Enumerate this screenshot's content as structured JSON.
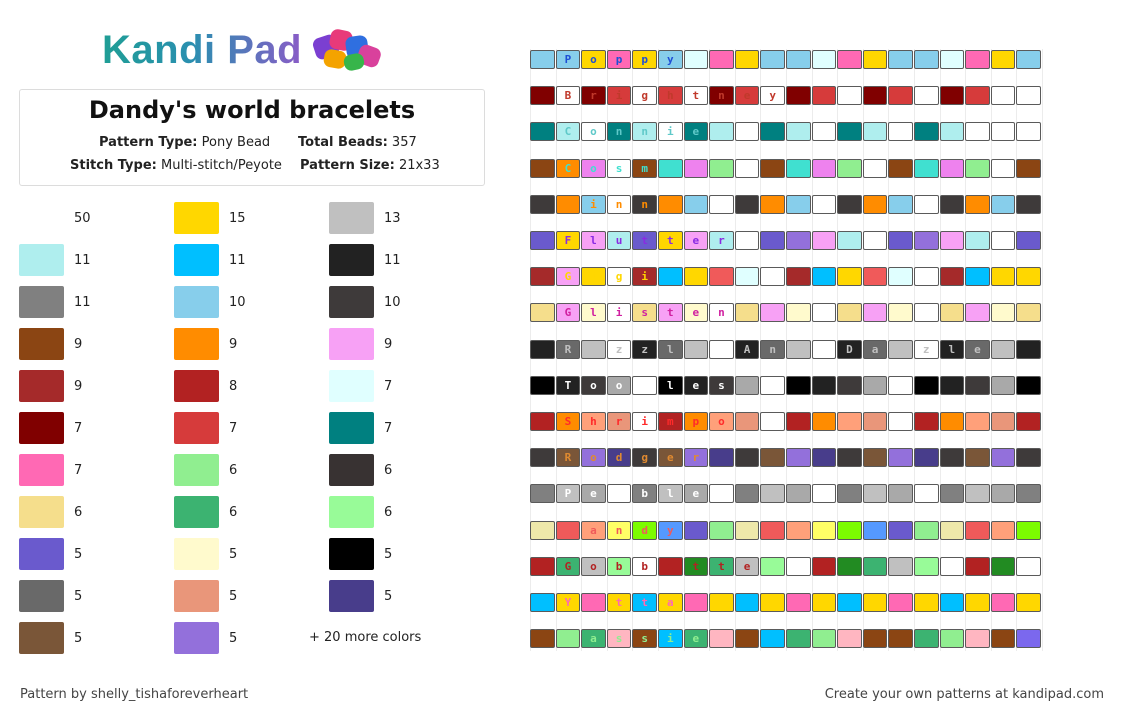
{
  "logo": {
    "text": "Kandi Pad",
    "icon": "beads-logo-icon"
  },
  "info": {
    "title": "Dandy's world bracelets",
    "pattern_type_label": "Pattern Type:",
    "pattern_type": "Pony Bead",
    "total_beads_label": "Total Beads:",
    "total_beads": "357",
    "stitch_type_label": "Stitch Type:",
    "stitch_type": "Multi-stitch/Peyote",
    "pattern_size_label": "Pattern Size:",
    "pattern_size": "21x33"
  },
  "legend": [
    [
      {
        "color": "#ffffff",
        "count": "50"
      },
      {
        "color": "#afeeee",
        "count": "11"
      },
      {
        "color": "#808080",
        "count": "11"
      },
      {
        "color": "#8b4513",
        "count": "9"
      },
      {
        "color": "#a52a2a",
        "count": "9"
      },
      {
        "color": "#800000",
        "count": "7"
      },
      {
        "color": "#ff69b4",
        "count": "7"
      },
      {
        "color": "#f5de8c",
        "count": "6"
      },
      {
        "color": "#6a5acd",
        "count": "5"
      },
      {
        "color": "#696969",
        "count": "5"
      },
      {
        "color": "#7a5638",
        "count": "5"
      }
    ],
    [
      {
        "color": "#ffd700",
        "count": "15"
      },
      {
        "color": "#00bfff",
        "count": "11"
      },
      {
        "color": "#87ceeb",
        "count": "10"
      },
      {
        "color": "#ff8c00",
        "count": "9"
      },
      {
        "color": "#b22222",
        "count": "8"
      },
      {
        "color": "#d63b3b",
        "count": "7"
      },
      {
        "color": "#90ee90",
        "count": "6"
      },
      {
        "color": "#3cb371",
        "count": "6"
      },
      {
        "color": "#fffacd",
        "count": "5"
      },
      {
        "color": "#e9967a",
        "count": "5"
      },
      {
        "color": "#9370db",
        "count": "5"
      }
    ],
    [
      {
        "color": "#c0c0c0",
        "count": "13"
      },
      {
        "color": "#222222",
        "count": "11"
      },
      {
        "color": "#3e3a3a",
        "count": "10"
      },
      {
        "color": "#f7a1f5",
        "count": "9"
      },
      {
        "color": "#e0ffff",
        "count": "7"
      },
      {
        "color": "#008080",
        "count": "7"
      },
      {
        "color": "#383232",
        "count": "6"
      },
      {
        "color": "#98fb98",
        "count": "6"
      },
      {
        "color": "#000000",
        "count": "5"
      },
      {
        "color": "#483d8b",
        "count": "5"
      }
    ]
  ],
  "more_colors": "+ 20 more colors",
  "pattern": [
    {
      "beads": [
        "#87ceeb",
        "#87ceeb",
        "#ffd700",
        "#ff69b4",
        "#ffd700",
        "#87ceeb",
        "#e0ffff",
        "#ff69b4",
        "#ffd700",
        "#87ceeb",
        "#87ceeb",
        "#e0ffff",
        "#ff69b4",
        "#ffd700",
        "#87ceeb",
        "#87ceeb",
        "#e0ffff",
        "#ff69b4",
        "#ffd700",
        "#87ceeb"
      ],
      "letters": [
        "",
        "P",
        "o",
        "p",
        "p",
        "y"
      ],
      "letter_color": "#1e4fd6"
    },
    {
      "beads": [
        "#800000",
        "#ffffff",
        "#800000",
        "#d63b3b",
        "#ffffff",
        "#d63b3b",
        "#ffffff",
        "#800000",
        "#d63b3b",
        "#ffffff",
        "#800000",
        "#d63b3b",
        "#ffffff",
        "#800000",
        "#d63b3b",
        "#ffffff",
        "#800000",
        "#d63b3b",
        "#ffffff",
        "#ffffff"
      ],
      "letters": [
        "",
        "B",
        "r",
        "i",
        "g",
        "h",
        "t",
        "n",
        "e",
        "y"
      ],
      "letter_color": "#c0392b"
    },
    {
      "beads": [
        "#008080",
        "#afeeee",
        "#ffffff",
        "#008080",
        "#afeeee",
        "#ffffff",
        "#008080",
        "#afeeee",
        "#ffffff",
        "#008080",
        "#afeeee",
        "#ffffff",
        "#008080",
        "#afeeee",
        "#ffffff",
        "#008080",
        "#afeeee",
        "#ffffff",
        "#ffffff",
        "#ffffff"
      ],
      "letters": [
        "",
        "C",
        "o",
        "n",
        "n",
        "i",
        "e"
      ],
      "letter_color": "#5fc9c9"
    },
    {
      "beads": [
        "#8b4513",
        "#ff8c00",
        "#ee82ee",
        "#ffffff",
        "#8b4513",
        "#40e0d0",
        "#ee82ee",
        "#90ee90",
        "#ffffff",
        "#8b4513",
        "#40e0d0",
        "#ee82ee",
        "#90ee90",
        "#ffffff",
        "#8b4513",
        "#40e0d0",
        "#ee82ee",
        "#90ee90",
        "#ffffff",
        "#8b4513"
      ],
      "letters": [
        "",
        "C",
        "o",
        "s",
        "m",
        "o"
      ],
      "letter_color": "#40e0d0"
    },
    {
      "beads": [
        "#3e3a3a",
        "#ff8c00",
        "#87ceeb",
        "#ffffff",
        "#3e3a3a",
        "#ff8c00",
        "#87ceeb",
        "#ffffff",
        "#3e3a3a",
        "#ff8c00",
        "#87ceeb",
        "#ffffff",
        "#3e3a3a",
        "#ff8c00",
        "#87ceeb",
        "#ffffff",
        "#3e3a3a",
        "#ff8c00",
        "#87ceeb",
        "#3e3a3a"
      ],
      "letters": [
        "",
        "F",
        "i",
        "n",
        "n"
      ],
      "letter_color": "#ff8c00"
    },
    {
      "beads": [
        "#6a5acd",
        "#ffd700",
        "#f7a1f5",
        "#afeeee",
        "#6a5acd",
        "#ffd700",
        "#f7a1f5",
        "#afeeee",
        "#ffffff",
        "#6a5acd",
        "#9370db",
        "#f7a1f5",
        "#afeeee",
        "#ffffff",
        "#6a5acd",
        "#9370db",
        "#f7a1f5",
        "#afeeee",
        "#ffffff",
        "#6a5acd"
      ],
      "letters": [
        "",
        "F",
        "l",
        "u",
        "t",
        "t",
        "e",
        "r"
      ],
      "letter_color": "#8a2be2"
    },
    {
      "beads": [
        "#a52a2a",
        "#f7a1f5",
        "#ffd700",
        "#ffffff",
        "#a52a2a",
        "#00bfff",
        "#ffd700",
        "#f05a5a",
        "#e0ffff",
        "#ffffff",
        "#a52a2a",
        "#00bfff",
        "#ffd700",
        "#f05a5a",
        "#e0ffff",
        "#ffffff",
        "#a52a2a",
        "#00bfff",
        "#ffd700",
        "#ffd700"
      ],
      "letters": [
        "",
        "G",
        "i",
        "g",
        "i"
      ],
      "letter_color": "#ffd700"
    },
    {
      "beads": [
        "#f5de8c",
        "#f7a1f5",
        "#fffacd",
        "#ffffff",
        "#f5de8c",
        "#f7a1f5",
        "#fffacd",
        "#ffffff",
        "#f5de8c",
        "#f7a1f5",
        "#fffacd",
        "#ffffff",
        "#f5de8c",
        "#f7a1f5",
        "#fffacd",
        "#ffffff",
        "#f5de8c",
        "#f7a1f5",
        "#fffacd",
        "#f5de8c"
      ],
      "letters": [
        "",
        "G",
        "l",
        "i",
        "s",
        "t",
        "e",
        "n"
      ],
      "letter_color": "#d020a0"
    },
    {
      "beads": [
        "#222222",
        "#696969",
        "#c0c0c0",
        "#ffffff",
        "#222222",
        "#696969",
        "#c0c0c0",
        "#ffffff",
        "#222222",
        "#696969",
        "#c0c0c0",
        "#ffffff",
        "#222222",
        "#696969",
        "#c0c0c0",
        "#ffffff",
        "#222222",
        "#696969",
        "#c0c0c0",
        "#222222"
      ],
      "letters": [
        "",
        "R",
        "a",
        "z",
        "z",
        "l",
        "e",
        "",
        "A",
        "n",
        "d",
        "",
        "D",
        "a",
        "z",
        "z",
        "l",
        "e"
      ],
      "letter_color": "#c0c0c0"
    },
    {
      "beads": [
        "#000000",
        "#222222",
        "#3e3a3a",
        "#a9a9a9",
        "#ffffff",
        "#000000",
        "#222222",
        "#3e3a3a",
        "#a9a9a9",
        "#ffffff",
        "#000000",
        "#222222",
        "#3e3a3a",
        "#a9a9a9",
        "#ffffff",
        "#000000",
        "#222222",
        "#3e3a3a",
        "#a9a9a9",
        "#000000"
      ],
      "letters": [
        "",
        "T",
        "o",
        "o",
        "d",
        "l",
        "e",
        "s"
      ],
      "letter_color": "#ffffff"
    },
    {
      "beads": [
        "#b22222",
        "#ff8c00",
        "#ffa07a",
        "#e9967a",
        "#ffffff",
        "#b22222",
        "#ff8c00",
        "#ffa07a",
        "#e9967a",
        "#ffffff",
        "#b22222",
        "#ff8c00",
        "#ffa07a",
        "#e9967a",
        "#ffffff",
        "#b22222",
        "#ff8c00",
        "#ffa07a",
        "#e9967a",
        "#b22222"
      ],
      "letters": [
        "",
        "S",
        "h",
        "r",
        "i",
        "m",
        "p",
        "o"
      ],
      "letter_color": "#ff2a2a"
    },
    {
      "beads": [
        "#3e3a3a",
        "#7a5638",
        "#9370db",
        "#483d8b",
        "#3e3a3a",
        "#7a5638",
        "#9370db",
        "#483d8b",
        "#3e3a3a",
        "#7a5638",
        "#9370db",
        "#483d8b",
        "#3e3a3a",
        "#7a5638",
        "#9370db",
        "#483d8b",
        "#3e3a3a",
        "#7a5638",
        "#9370db",
        "#3e3a3a"
      ],
      "letters": [
        "",
        "R",
        "o",
        "d",
        "g",
        "e",
        "r"
      ],
      "letter_color": "#e08a30"
    },
    {
      "beads": [
        "#808080",
        "#c0c0c0",
        "#a9a9a9",
        "#ffffff",
        "#808080",
        "#c0c0c0",
        "#a9a9a9",
        "#ffffff",
        "#808080",
        "#c0c0c0",
        "#a9a9a9",
        "#ffffff",
        "#808080",
        "#c0c0c0",
        "#a9a9a9",
        "#ffffff",
        "#808080",
        "#c0c0c0",
        "#a9a9a9",
        "#808080"
      ],
      "letters": [
        "",
        "P",
        "e",
        "b",
        "b",
        "l",
        "e"
      ],
      "letter_color": "#ffffff"
    },
    {
      "beads": [
        "#eee8aa",
        "#f05a5a",
        "#ffa07a",
        "#ffff66",
        "#7cfc00",
        "#5599ff",
        "#6a5acd",
        "#90ee90",
        "#eee8aa",
        "#f05a5a",
        "#ffa07a",
        "#ffff66",
        "#7cfc00",
        "#5599ff",
        "#6a5acd",
        "#90ee90",
        "#eee8aa",
        "#f05a5a",
        "#ffa07a",
        "#7cfc00"
      ],
      "letters": [
        "",
        "D",
        "a",
        "n",
        "d",
        "y"
      ],
      "letter_color": "#f05a5a"
    },
    {
      "beads": [
        "#b22222",
        "#3cb371",
        "#c0c0c0",
        "#98fb98",
        "#ffffff",
        "#b22222",
        "#228b22",
        "#3cb371",
        "#c0c0c0",
        "#98fb98",
        "#ffffff",
        "#b22222",
        "#228b22",
        "#3cb371",
        "#c0c0c0",
        "#98fb98",
        "#ffffff",
        "#b22222",
        "#228b22",
        "#ffffff"
      ],
      "letters": [
        "",
        "G",
        "o",
        "b",
        "b",
        "e",
        "t",
        "t",
        "e"
      ],
      "letter_color": "#b22222"
    },
    {
      "beads": [
        "#00bfff",
        "#ffd700",
        "#ff69b4",
        "#ffd700",
        "#00bfff",
        "#ffd700",
        "#ff69b4",
        "#ffd700",
        "#00bfff",
        "#ffd700",
        "#ff69b4",
        "#ffd700",
        "#00bfff",
        "#ffd700",
        "#ff69b4",
        "#ffd700",
        "#00bfff",
        "#ffd700",
        "#ff69b4",
        "#ffd700"
      ],
      "letters": [
        "",
        "Y",
        "a",
        "t",
        "t",
        "a"
      ],
      "letter_color": "#ff69b4"
    },
    {
      "beads": [
        "#8b4513",
        "#90ee90",
        "#3cb371",
        "#ffb6c1",
        "#8b4513",
        "#00bfff",
        "#3cb371",
        "#ffb6c1",
        "#8b4513",
        "#00bfff",
        "#3cb371",
        "#90ee90",
        "#ffb6c1",
        "#8b4513",
        "#8b4513",
        "#3cb371",
        "#90ee90",
        "#ffb6c1",
        "#8b4513",
        "#7b68ee"
      ],
      "letters": [
        "",
        "B",
        "a",
        "s",
        "s",
        "i",
        "e"
      ],
      "letter_color": "#90ee90"
    }
  ],
  "footer": {
    "left": "Pattern by shelly_tishaforeverheart",
    "right": "Create your own patterns at kandipad.com"
  }
}
